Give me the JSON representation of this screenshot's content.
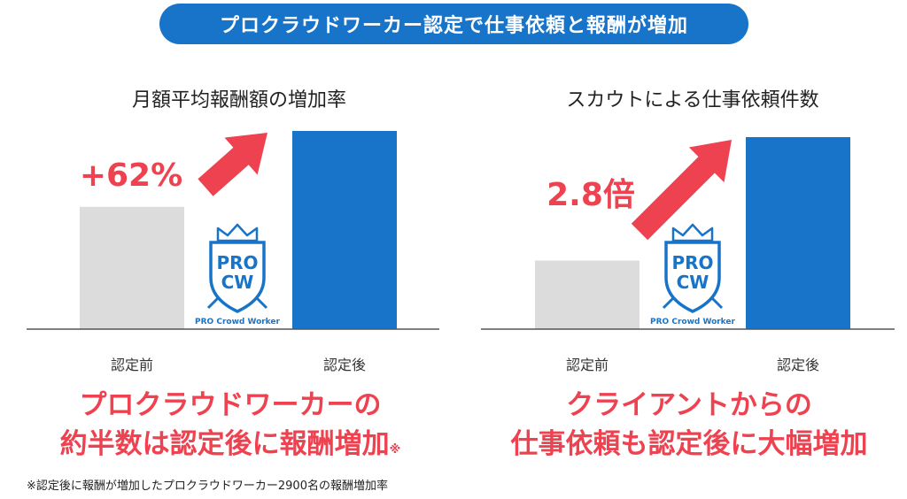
{
  "banner": {
    "text": "プロクラウドワーカー認定で仕事依頼と報酬が増加"
  },
  "colors": {
    "banner": "#1874c9",
    "bar_before": "#dcdcdc",
    "bar_after": "#1874c9",
    "accent": "#ee4250",
    "badge": "#1874c9"
  },
  "badge": {
    "line1": "PRO",
    "line2": "CW",
    "caption": "PRO Crowd Worker"
  },
  "chart_data": [
    {
      "type": "bar",
      "title": "月額平均報酬額の増加率",
      "categories": [
        "認定前",
        "認定後"
      ],
      "values": [
        1,
        1.62
      ],
      "ylim": [
        0,
        1.7
      ],
      "increase_label": "+62%",
      "grid": false
    },
    {
      "type": "bar",
      "title": "スカウトによる仕事依頼件数",
      "categories": [
        "認定前",
        "認定後"
      ],
      "values": [
        1,
        2.8
      ],
      "ylim": [
        0,
        2.95
      ],
      "increase_label": "2.8倍",
      "grid": false
    }
  ],
  "captions": [
    {
      "line1": "プロクラウドワーカーの",
      "line2": "約半数は認定後に報酬増加",
      "mark": "※"
    },
    {
      "line1": "クライアントからの",
      "line2": "仕事依頼も認定後に大幅増加",
      "mark": ""
    }
  ],
  "footnote": "※認定後に報酬が増加したプロクラウドワーカー2900名の報酬増加率"
}
